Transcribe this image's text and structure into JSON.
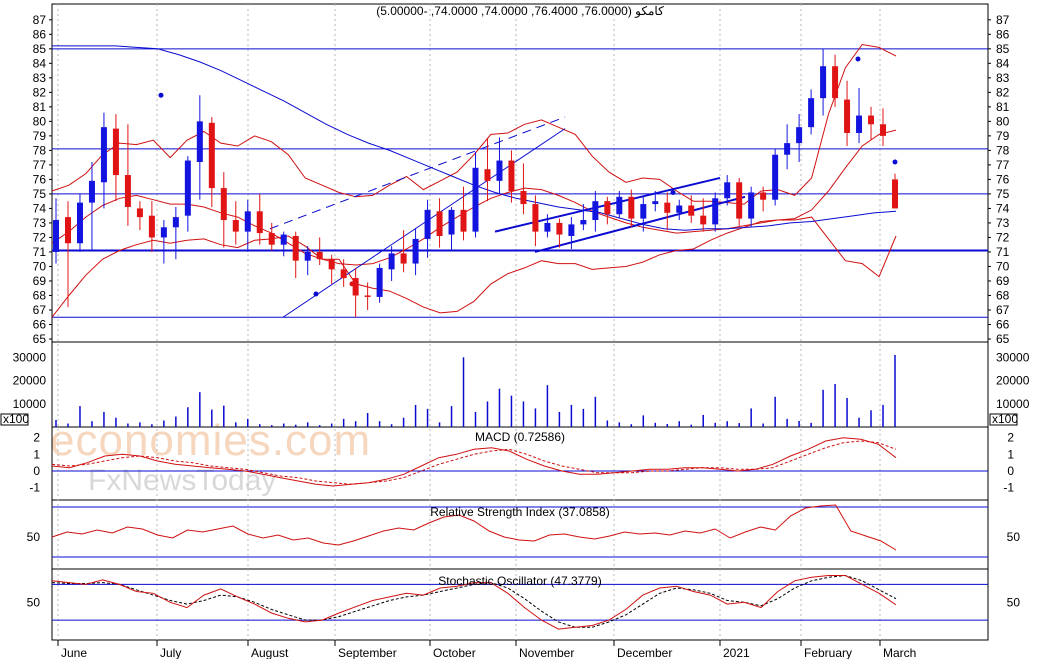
{
  "chart_data": {
    "type": "candlestick",
    "title": "کامکو (76.0000, 76.4000, 74.0000, 74.0000, -5.00000)",
    "watermark": {
      "line1": "economies.com",
      "line2": "FxNewsToday"
    },
    "x_axis": {
      "labels": [
        "June",
        "July",
        "August",
        "September",
        "October",
        "November",
        "December",
        "2021",
        "February",
        "March"
      ]
    },
    "price_panel": {
      "y_ticks": [
        65,
        66,
        67,
        68,
        69,
        70,
        71,
        72,
        73,
        74,
        75,
        76,
        77,
        78,
        79,
        80,
        81,
        82,
        83,
        84,
        85,
        86,
        87
      ],
      "ylim": [
        65,
        87.4
      ],
      "horizontal_levels": [
        85,
        78.1,
        75,
        71.1,
        66.5
      ],
      "colors": {
        "up": "#1414e0",
        "down": "#e01414",
        "band": "#d01010",
        "ma": "#0a0ad0",
        "level": "#0a0ad0"
      },
      "candles": [
        {
          "o": 71,
          "h": 74.7,
          "l": 70.2,
          "c": 73.2
        },
        {
          "o": 73.4,
          "h": 74.5,
          "l": 67.2,
          "c": 71.6
        },
        {
          "o": 71.6,
          "h": 75,
          "l": 71,
          "c": 74.4
        },
        {
          "o": 74.4,
          "h": 77.2,
          "l": 71.1,
          "c": 75.9
        },
        {
          "o": 75.8,
          "h": 80.6,
          "l": 74,
          "c": 79.6
        },
        {
          "o": 79.5,
          "h": 80.5,
          "l": 74.5,
          "c": 76.3
        },
        {
          "o": 76.3,
          "h": 79.8,
          "l": 72.8,
          "c": 74.1
        },
        {
          "o": 74,
          "h": 74.5,
          "l": 72.5,
          "c": 73.4
        },
        {
          "o": 73.5,
          "h": 74.5,
          "l": 71,
          "c": 72
        },
        {
          "o": 72,
          "h": 73.2,
          "l": 70.2,
          "c": 72.7
        },
        {
          "o": 72.7,
          "h": 74.1,
          "l": 70.5,
          "c": 73.4
        },
        {
          "o": 73.5,
          "h": 77.6,
          "l": 72.4,
          "c": 77.3
        },
        {
          "o": 77.2,
          "h": 81.8,
          "l": 74.6,
          "c": 80
        },
        {
          "o": 79.9,
          "h": 80.3,
          "l": 74.1,
          "c": 75.4
        },
        {
          "o": 75.4,
          "h": 76.5,
          "l": 71.3,
          "c": 73.2
        },
        {
          "o": 73.2,
          "h": 74.5,
          "l": 71.5,
          "c": 72.4
        },
        {
          "o": 72.4,
          "h": 74.6,
          "l": 71,
          "c": 73.8
        },
        {
          "o": 73.8,
          "h": 75,
          "l": 71.5,
          "c": 72.3
        },
        {
          "o": 72.3,
          "h": 73,
          "l": 71.1,
          "c": 71.5
        },
        {
          "o": 71.5,
          "h": 72.4,
          "l": 70.7,
          "c": 72.2
        },
        {
          "o": 72.1,
          "h": 72.4,
          "l": 69.2,
          "c": 70.4
        },
        {
          "o": 70.4,
          "h": 71.4,
          "l": 69.4,
          "c": 71
        },
        {
          "o": 71,
          "h": 72,
          "l": 70.1,
          "c": 70.5
        },
        {
          "o": 70.5,
          "h": 70.8,
          "l": 68.8,
          "c": 69.8
        },
        {
          "o": 69.8,
          "h": 70.5,
          "l": 68.6,
          "c": 69.2
        },
        {
          "o": 69.2,
          "h": 69.9,
          "l": 66.5,
          "c": 68
        },
        {
          "o": 68,
          "h": 68.9,
          "l": 67,
          "c": 67.9
        },
        {
          "o": 67.9,
          "h": 70.2,
          "l": 67.5,
          "c": 69.9
        },
        {
          "o": 69.8,
          "h": 71.4,
          "l": 69,
          "c": 70.9
        },
        {
          "o": 70.9,
          "h": 72.5,
          "l": 69.6,
          "c": 70.2
        },
        {
          "o": 70.2,
          "h": 72.6,
          "l": 69.4,
          "c": 71.9
        },
        {
          "o": 71.9,
          "h": 74.6,
          "l": 70.6,
          "c": 73.9
        },
        {
          "o": 73.8,
          "h": 74.7,
          "l": 71.3,
          "c": 72.1
        },
        {
          "o": 72.2,
          "h": 74.1,
          "l": 71.1,
          "c": 73.9
        },
        {
          "o": 73.9,
          "h": 75.5,
          "l": 71.8,
          "c": 72.4
        },
        {
          "o": 72.4,
          "h": 77.9,
          "l": 72,
          "c": 76.8
        },
        {
          "o": 76.7,
          "h": 78.8,
          "l": 74.5,
          "c": 75.9
        },
        {
          "o": 75.9,
          "h": 78.9,
          "l": 75,
          "c": 77.3
        },
        {
          "o": 77.3,
          "h": 78,
          "l": 74.4,
          "c": 75.2
        },
        {
          "o": 75.2,
          "h": 77.1,
          "l": 73.6,
          "c": 74.3
        },
        {
          "o": 74.3,
          "h": 74.9,
          "l": 71.4,
          "c": 72.4
        },
        {
          "o": 72.4,
          "h": 73.6,
          "l": 72,
          "c": 73
        },
        {
          "o": 73,
          "h": 73.3,
          "l": 71.3,
          "c": 72.2
        },
        {
          "o": 72.1,
          "h": 73.4,
          "l": 71.2,
          "c": 72.9
        },
        {
          "o": 72.9,
          "h": 74.3,
          "l": 72.5,
          "c": 73.2
        },
        {
          "o": 73.2,
          "h": 75.2,
          "l": 72.4,
          "c": 74.5
        },
        {
          "o": 74.5,
          "h": 74.8,
          "l": 72.9,
          "c": 73.6
        },
        {
          "o": 73.6,
          "h": 75.2,
          "l": 73.3,
          "c": 74.8
        },
        {
          "o": 74.8,
          "h": 75.3,
          "l": 72.7,
          "c": 73.3
        },
        {
          "o": 73.3,
          "h": 74.8,
          "l": 72.4,
          "c": 74.3
        },
        {
          "o": 74.3,
          "h": 75.2,
          "l": 73.8,
          "c": 74.5
        },
        {
          "o": 74.4,
          "h": 75.1,
          "l": 72.5,
          "c": 73.7
        },
        {
          "o": 73.7,
          "h": 74.6,
          "l": 73.2,
          "c": 74.2
        },
        {
          "o": 74.2,
          "h": 74.9,
          "l": 73,
          "c": 73.5
        },
        {
          "o": 73.5,
          "h": 74.7,
          "l": 72.4,
          "c": 72.9
        },
        {
          "o": 72.9,
          "h": 75.1,
          "l": 72.4,
          "c": 74.7
        },
        {
          "o": 74.7,
          "h": 76.3,
          "l": 74.2,
          "c": 75.8
        },
        {
          "o": 75.8,
          "h": 76.1,
          "l": 72.8,
          "c": 73.3
        },
        {
          "o": 73.3,
          "h": 75.5,
          "l": 72.7,
          "c": 75.1
        },
        {
          "o": 75.1,
          "h": 75.5,
          "l": 73.8,
          "c": 74.6
        },
        {
          "o": 74.6,
          "h": 78.1,
          "l": 74.2,
          "c": 77.7
        },
        {
          "o": 77.7,
          "h": 79.8,
          "l": 76.7,
          "c": 78.5
        },
        {
          "o": 78.5,
          "h": 80.5,
          "l": 77.2,
          "c": 79.6
        },
        {
          "o": 79.6,
          "h": 82.2,
          "l": 79.1,
          "c": 81.6
        },
        {
          "o": 81.6,
          "h": 85,
          "l": 80.4,
          "c": 83.8
        },
        {
          "o": 83.8,
          "h": 84.6,
          "l": 81,
          "c": 81.6
        },
        {
          "o": 81.5,
          "h": 82.8,
          "l": 78.3,
          "c": 79.2
        },
        {
          "o": 79.2,
          "h": 82.3,
          "l": 78.5,
          "c": 80.4
        },
        {
          "o": 80.4,
          "h": 81,
          "l": 78.7,
          "c": 79.8
        },
        {
          "o": 79.8,
          "h": 80.9,
          "l": 78.3,
          "c": 79
        },
        {
          "o": 76,
          "h": 76.4,
          "l": 74,
          "c": 74
        }
      ],
      "bollinger_upper": [
        75.2,
        75.6,
        76.4,
        77.7,
        78.5,
        78.4,
        78.7,
        77.5,
        78.7,
        79.3,
        78.5,
        78.3,
        79,
        78.6,
        77.7,
        76.1,
        75.6,
        75.1,
        74.8,
        74.9,
        75.6,
        76.2,
        75.3,
        75.9,
        76.5,
        77.7,
        79.1,
        79.2,
        79.8,
        80.1,
        79.6,
        79.1,
        77.6,
        76.5,
        75.8,
        76.1,
        76,
        75.2,
        74.5,
        74.5,
        74.4,
        74.3,
        75.2,
        75.3,
        74.9,
        76.1,
        80.5,
        83.7,
        85.3,
        85.1,
        84.5
      ],
      "bollinger_lower": [
        66.5,
        68,
        69.4,
        70.5,
        71.1,
        71.5,
        71.8,
        71.6,
        71.8,
        71.9,
        71.5,
        71.3,
        71.8,
        71.9,
        72.1,
        71.4,
        70.5,
        70.5,
        68.8,
        68.5,
        68.3,
        67.8,
        67.2,
        66.8,
        66.9,
        67.6,
        68.8,
        69.5,
        69.9,
        70.4,
        70.2,
        70.2,
        69.8,
        69.9,
        70,
        70.3,
        70.8,
        71.1,
        71.2,
        71.8,
        72.3,
        72.7,
        73.1,
        73.2,
        73.2,
        73.4,
        71.9,
        70.4,
        70.2,
        69.3,
        72.1
      ],
      "bollinger_mid": [
        71.6,
        72.4,
        73.4,
        74.2,
        74.7,
        74.9,
        74.6,
        74.3,
        74.3,
        74.1,
        73.7,
        73.4,
        72.8,
        72.3,
        71.6,
        70.9,
        70.5,
        70.2,
        70.1,
        70.2,
        70.6,
        71.2,
        71.9,
        72.7,
        73.4,
        74.1,
        74.7,
        75.1,
        75.4,
        75.3,
        74.9,
        74.4,
        73.8,
        73.4,
        73,
        72.7,
        72.5,
        72.3,
        72.4,
        72.5,
        72.6,
        72.8,
        73,
        73.2,
        73.3,
        73.9,
        75.2,
        76.8,
        78.3,
        79.1,
        79.4
      ],
      "moving_average": [
        85.2,
        85.2,
        85.2,
        85.2,
        85.1,
        85,
        84.6,
        84.1,
        83.5,
        82.8,
        82.1,
        81.4,
        80.6,
        79.8,
        79.1,
        78.5,
        78,
        77.4,
        76.8,
        76.2,
        75.6,
        75.1,
        74.7,
        74.4,
        74.1,
        73.9,
        73.7,
        73.3,
        72.9,
        72.6,
        72.5,
        72.6,
        72.6,
        72.7,
        72.8,
        73,
        73.1,
        73.3,
        73.5,
        73.7,
        73.8
      ]
    },
    "volume_panel": {
      "y_ticks": [
        10000,
        20000,
        30000
      ],
      "ylim": [
        0,
        34000
      ],
      "unit_label": "x100",
      "values": [
        3000,
        1500,
        9000,
        2500,
        6500,
        4000,
        1500,
        2000,
        1200,
        2800,
        4500,
        8500,
        15000,
        7500,
        9200,
        2000,
        3500,
        1200,
        800,
        1500,
        1000,
        2000,
        800,
        1500,
        3500,
        2500,
        6000,
        2500,
        1200,
        4000,
        9500,
        7800,
        2000,
        9000,
        30000,
        6500,
        11000,
        16500,
        13500,
        11000,
        8000,
        18000,
        6500,
        9500,
        7800,
        13000,
        2800,
        2000,
        1200,
        5000,
        1800,
        1300,
        2500,
        1000,
        5200,
        1800,
        2500,
        1700,
        8000,
        1500,
        13000,
        3500,
        2600,
        1800,
        16000,
        18500,
        12500,
        4000,
        7200,
        9500,
        31000
      ],
      "color": "#0a0ad0"
    },
    "macd_panel": {
      "title": "MACD (0.72586)",
      "y_ticks": [
        -1,
        0,
        1,
        2
      ],
      "ylim": [
        -1.5,
        2.4
      ],
      "macd": [
        0.3,
        0.2,
        0.5,
        0.9,
        1,
        0.9,
        0.6,
        0.4,
        0.3,
        0.2,
        0.1,
        0,
        -0.2,
        -0.4,
        -0.6,
        -0.8,
        -0.9,
        -0.8,
        -0.7,
        -0.5,
        -0.2,
        0.3,
        0.8,
        1,
        1.3,
        1.4,
        1.2,
        0.7,
        0.3,
        0,
        -0.2,
        -0.2,
        -0.1,
        0,
        0.1,
        0.1,
        0.2,
        0.2,
        0.1,
        0,
        0.1,
        0.4,
        0.9,
        1.3,
        1.8,
        2,
        1.9,
        1.6,
        0.8
      ],
      "signal": [
        0.4,
        0.3,
        0.4,
        0.6,
        0.8,
        0.9,
        0.8,
        0.6,
        0.5,
        0.3,
        0.2,
        0.1,
        -0.1,
        -0.3,
        -0.4,
        -0.6,
        -0.7,
        -0.8,
        -0.7,
        -0.6,
        -0.4,
        0,
        0.4,
        0.7,
        1,
        1.2,
        1.3,
        1,
        0.6,
        0.3,
        0.1,
        -0.1,
        -0.1,
        -0.1,
        0,
        0,
        0.1,
        0.2,
        0.2,
        0.1,
        0.1,
        0.2,
        0.6,
        1,
        1.4,
        1.7,
        1.8,
        1.7,
        1.3
      ]
    },
    "rsi_panel": {
      "title": "Relative Strength Index (37.0858)",
      "y_ticks": [
        50
      ],
      "ylim": [
        20,
        85
      ],
      "levels": [
        80,
        30
      ],
      "values": [
        50,
        55,
        53,
        57,
        54,
        60,
        58,
        52,
        49,
        57,
        55,
        58,
        61,
        53,
        49,
        52,
        47,
        49,
        44,
        42,
        46,
        51,
        56,
        59,
        57,
        64,
        70,
        72,
        66,
        56,
        50,
        47,
        46,
        52,
        53,
        50,
        48,
        51,
        55,
        53,
        54,
        52,
        56,
        54,
        58,
        49,
        55,
        60,
        57,
        71,
        79,
        81,
        82,
        56,
        51,
        46,
        37
      ]
    },
    "stochastic_panel": {
      "title": "Stochastic Oscillator (47.3779)",
      "y_ticks": [
        50
      ],
      "ylim": [
        10,
        85
      ],
      "levels": [
        70,
        30
      ],
      "k": [
        74,
        72,
        70,
        75,
        70,
        62,
        60,
        50,
        44,
        58,
        65,
        56,
        48,
        38,
        32,
        28,
        30,
        38,
        45,
        52,
        56,
        60,
        58,
        66,
        68,
        72,
        72,
        60,
        44,
        30,
        20,
        22,
        24,
        30,
        42,
        58,
        66,
        68,
        62,
        58,
        48,
        50,
        44,
        62,
        74,
        78,
        80,
        80,
        70,
        60,
        47
      ],
      "d": [
        72,
        71,
        71,
        72,
        70,
        64,
        58,
        52,
        48,
        52,
        58,
        56,
        50,
        42,
        36,
        30,
        30,
        34,
        40,
        46,
        52,
        56,
        58,
        62,
        66,
        70,
        72,
        66,
        54,
        40,
        28,
        22,
        22,
        28,
        36,
        48,
        60,
        66,
        64,
        60,
        52,
        50,
        46,
        54,
        66,
        74,
        78,
        80,
        74,
        64,
        54
      ]
    }
  }
}
